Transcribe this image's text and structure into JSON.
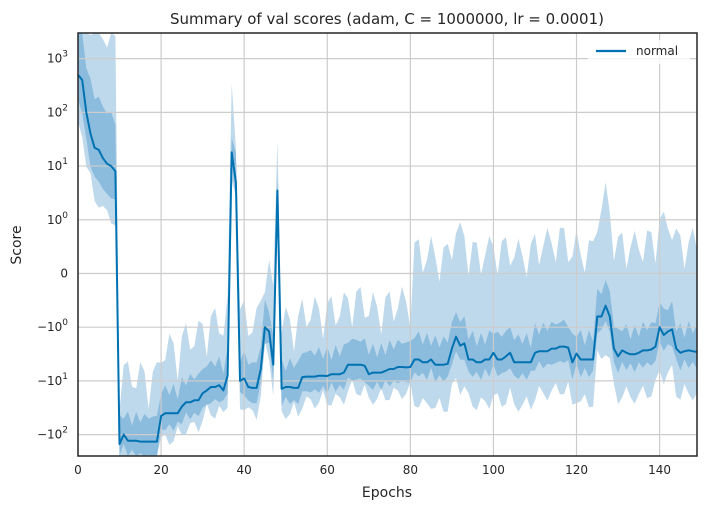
{
  "chart_data": {
    "type": "line",
    "title": "Summary of val scores (adam, C = 1000000, lr = 0.0001)",
    "xlabel": "Epochs",
    "ylabel": "Score",
    "xlim": [
      0,
      149
    ],
    "xticks": [
      0,
      20,
      40,
      60,
      80,
      100,
      120,
      140
    ],
    "yscale": "symlog",
    "ylim": [
      -250,
      3000
    ],
    "yticks": [
      {
        "value": 1000,
        "base": "10",
        "exp": "3"
      },
      {
        "value": 100,
        "base": "10",
        "exp": "2"
      },
      {
        "value": 10,
        "base": "10",
        "exp": "1"
      },
      {
        "value": 1,
        "base": "10",
        "exp": "0"
      },
      {
        "value": 0,
        "base": "0",
        "exp": ""
      },
      {
        "value": -1,
        "base": "−10",
        "exp": "0"
      },
      {
        "value": -10,
        "base": "−10",
        "exp": "1"
      },
      {
        "value": -100,
        "base": "−10",
        "exp": "2"
      }
    ],
    "grid": true,
    "legend_position": "top-right",
    "colors": {
      "line": "#0072b2",
      "inner_band": "#6aa8d4",
      "outer_band": "#a9cce6"
    },
    "series": [
      {
        "name": "normal",
        "x": [
          0,
          1,
          2,
          3,
          4,
          5,
          6,
          7,
          8,
          9,
          10,
          11,
          12,
          13,
          14,
          15,
          16,
          17,
          18,
          19,
          20,
          21,
          22,
          23,
          24,
          25,
          26,
          27,
          28,
          29,
          30,
          31,
          32,
          33,
          34,
          35,
          36,
          37,
          38,
          39,
          40,
          41,
          42,
          43,
          44,
          45,
          46,
          47,
          48,
          49,
          50,
          51,
          52,
          53,
          54,
          55,
          56,
          57,
          58,
          59,
          60,
          61,
          62,
          63,
          64,
          65,
          66,
          67,
          68,
          69,
          70,
          71,
          72,
          73,
          74,
          75,
          76,
          77,
          78,
          79,
          80,
          81,
          82,
          83,
          84,
          85,
          86,
          87,
          88,
          89,
          90,
          91,
          92,
          93,
          94,
          95,
          96,
          97,
          98,
          99,
          100,
          101,
          102,
          103,
          104,
          105,
          106,
          107,
          108,
          109,
          110,
          111,
          112,
          113,
          114,
          115,
          116,
          117,
          118,
          119,
          120,
          121,
          122,
          123,
          124,
          125,
          126,
          127,
          128,
          129,
          130,
          131,
          132,
          133,
          134,
          135,
          136,
          137,
          138,
          139,
          140,
          141,
          142,
          143,
          144,
          145,
          146,
          147,
          148,
          149
        ],
        "y": [
          500,
          400,
          100,
          40,
          22,
          20,
          14,
          11,
          10,
          8,
          -150,
          -100,
          -130,
          -130,
          -130,
          -135,
          -135,
          -135,
          -135,
          -135,
          -45,
          -40,
          -40,
          -40,
          -40,
          -30,
          -25,
          -25,
          -23,
          -23,
          -17,
          -15,
          -13,
          -13,
          -12,
          -15,
          -8,
          18,
          5,
          -10,
          -9,
          -13,
          -13.5,
          -13.5,
          -6,
          -1,
          -1.2,
          -5,
          3.5,
          -14,
          -13,
          -13,
          -13.5,
          -13.5,
          -8.5,
          -8.3,
          -8.3,
          -8.3,
          -8,
          -8,
          -8.1,
          -7.5,
          -7.5,
          -7.5,
          -7,
          -5,
          -5,
          -5,
          -5,
          -5.2,
          -7.5,
          -7,
          -7,
          -7,
          -6.5,
          -6,
          -6,
          -5.5,
          -5.5,
          -5.6,
          -5.5,
          -4,
          -4,
          -4.5,
          -4.5,
          -4,
          -5,
          -5,
          -5,
          -4.8,
          -2.5,
          -1.5,
          -2.2,
          -2,
          -4,
          -4,
          -4.5,
          -4.5,
          -4,
          -4,
          -3,
          -4,
          -4,
          -3.5,
          -3,
          -4.5,
          -4.5,
          -4.5,
          -4.5,
          -4.5,
          -3,
          -2.8,
          -2.8,
          -2.8,
          -2.5,
          -2.5,
          -2.3,
          -2.3,
          -2.4,
          -4.5,
          -3.1,
          -4,
          -4,
          -4,
          -4,
          -0.8,
          -0.8,
          -0.6,
          -0.8,
          -2.5,
          -3.5,
          -2.7,
          -3,
          -3.2,
          -3.2,
          -3,
          -2.7,
          -2.7,
          -2.6,
          -2.3,
          -1,
          -1.4,
          -1.2,
          -1.1,
          -2.5,
          -3,
          -2.8,
          -2.7,
          -2.8,
          -2.9
        ]
      }
    ]
  }
}
